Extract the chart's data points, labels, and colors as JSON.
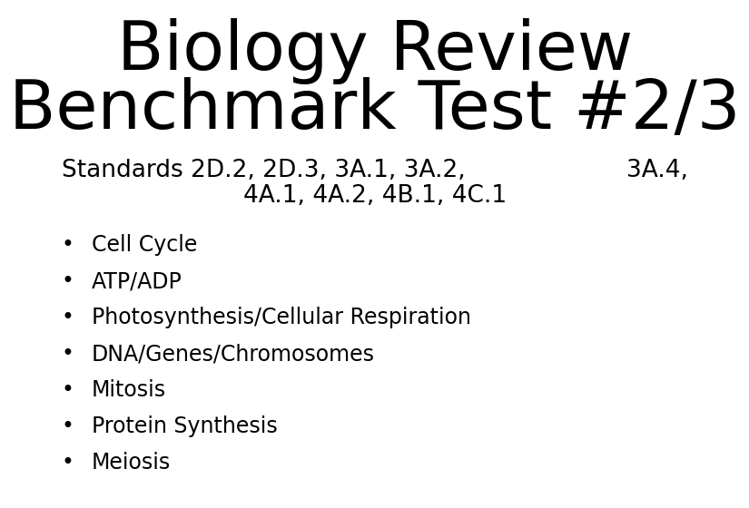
{
  "title_line1": "Biology Review",
  "title_line2": "Benchmark Test #2/3",
  "standards_line1": "Standards 2D.2, 2D.3, 3A.1, 3A.2,",
  "standards_line1_right": "3A.4,",
  "standards_line2": "4A.1, 4A.2, 4B.1, 4C.1",
  "bullet_items": [
    "Cell Cycle",
    "ATP/ADP",
    "Photosynthesis/Cellular Respiration",
    "DNA/Genes/Chromosomes",
    "Mitosis",
    "Protein Synthesis",
    "Meiosis"
  ],
  "background_color": "#ffffff",
  "text_color": "#000000",
  "title_fontsize": 54,
  "standards_fontsize": 19,
  "bullet_fontsize": 17,
  "title_font": "DejaVu Sans",
  "body_font": "DejaVu Sans"
}
